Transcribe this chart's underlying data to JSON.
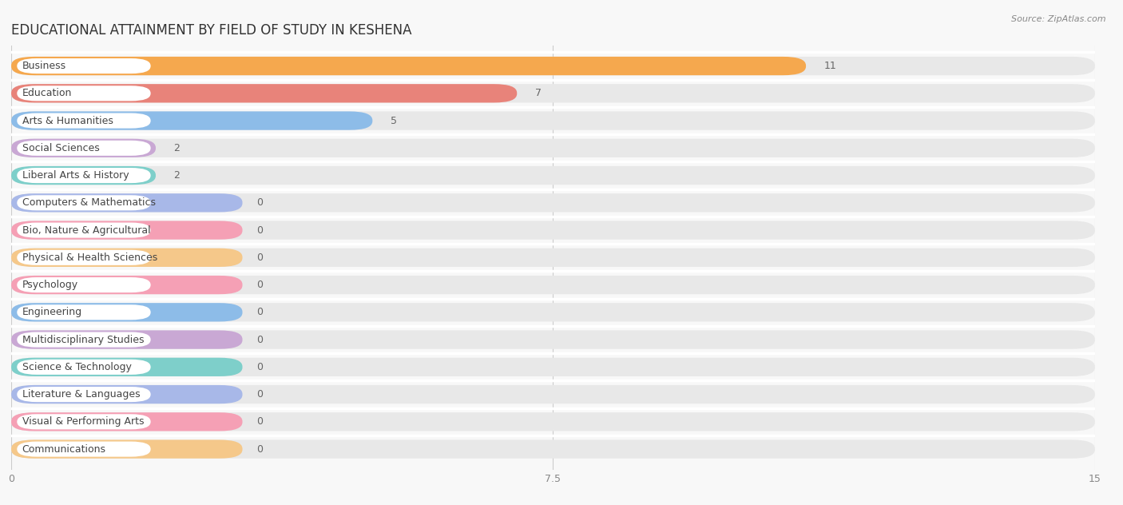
{
  "title": "EDUCATIONAL ATTAINMENT BY FIELD OF STUDY IN KESHENA",
  "source": "Source: ZipAtlas.com",
  "categories": [
    "Business",
    "Education",
    "Arts & Humanities",
    "Social Sciences",
    "Liberal Arts & History",
    "Computers & Mathematics",
    "Bio, Nature & Agricultural",
    "Physical & Health Sciences",
    "Psychology",
    "Engineering",
    "Multidisciplinary Studies",
    "Science & Technology",
    "Literature & Languages",
    "Visual & Performing Arts",
    "Communications"
  ],
  "values": [
    11,
    7,
    5,
    2,
    2,
    0,
    0,
    0,
    0,
    0,
    0,
    0,
    0,
    0,
    0
  ],
  "bar_colors": [
    "#F5A84E",
    "#E8837A",
    "#8DBCE8",
    "#C9A8D4",
    "#7ECFCA",
    "#A8B8E8",
    "#F5A0B5",
    "#F5C88A",
    "#F5A0B5",
    "#8DBCE8",
    "#C9A8D4",
    "#7ECFCA",
    "#A8B8E8",
    "#F5A0B5",
    "#F5C88A"
  ],
  "xlim": [
    0,
    15
  ],
  "xticks": [
    0,
    7.5,
    15
  ],
  "background_color": "#f8f8f8",
  "bar_background_color": "#e8e8e8",
  "white_label_bg": "#ffffff",
  "title_fontsize": 12,
  "label_fontsize": 9,
  "value_fontsize": 9,
  "zero_bar_width": 3.2,
  "row_sep_color": "#ffffff"
}
